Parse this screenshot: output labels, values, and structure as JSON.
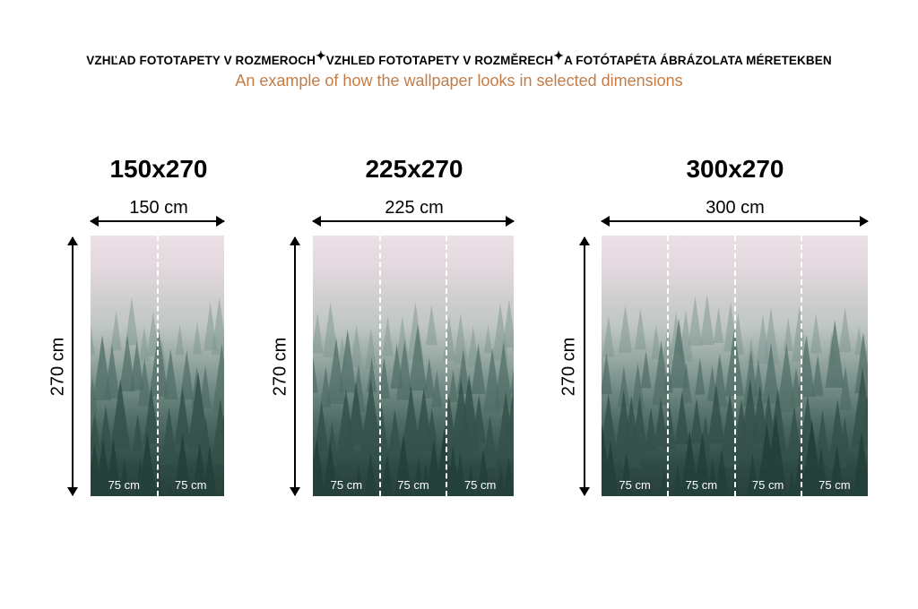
{
  "header": {
    "line_parts": [
      "VZHĽAD FOTOTAPETY V ROZMEROCH",
      "VZHLED FOTOTAPETY V ROZMĚRECH",
      "A FOTÓTAPÉTA ÁBRÁZOLATA MÉRETEKBEN"
    ],
    "separator_icon": "sparkle-icon",
    "subtitle": "An example of how the wallpaper looks in selected dimensions",
    "subtitle_color": "#c47c46"
  },
  "variants": [
    {
      "title": "150x270",
      "width_label": "150 cm",
      "height_label": "270 cm",
      "panels": [
        "75 cm",
        "75 cm"
      ]
    },
    {
      "title": "225x270",
      "width_label": "225 cm",
      "height_label": "270 cm",
      "panels": [
        "75 cm",
        "75 cm",
        "75 cm"
      ]
    },
    {
      "title": "300x270",
      "width_label": "300 cm",
      "height_label": "270 cm",
      "panels": [
        "75 cm",
        "75 cm",
        "75 cm",
        "75 cm"
      ]
    }
  ]
}
